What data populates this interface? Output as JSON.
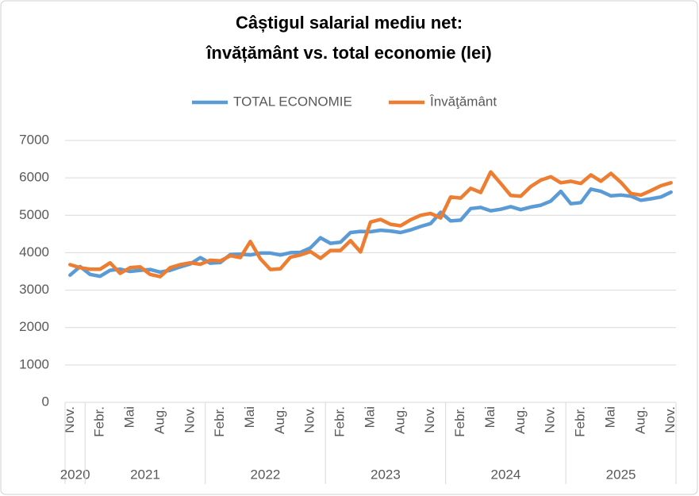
{
  "chart_data": {
    "type": "line",
    "title": [
      "Câștigul salarial mediu net:",
      "învățământ vs. total economie (lei)"
    ],
    "categories": [
      "Nov.",
      null,
      null,
      "Febr.",
      null,
      null,
      "Mai",
      null,
      null,
      "Aug.",
      null,
      null,
      "Nov.",
      null,
      null,
      "Febr.",
      null,
      null,
      "Mai",
      null,
      null,
      "Aug.",
      null,
      null,
      "Nov.",
      null,
      null,
      "Febr.",
      null,
      null,
      "Mai",
      null,
      null,
      "Aug.",
      null,
      null,
      "Nov.",
      null,
      null,
      "Febr.",
      null,
      null,
      "Mai",
      null,
      null,
      "Aug.",
      null,
      null,
      "Nov.",
      null,
      null,
      "Febr.",
      null,
      null,
      "Mai",
      null,
      null,
      "Aug.",
      null,
      null,
      "Nov."
    ],
    "groups": [
      {
        "label": "2020",
        "size": 2
      },
      {
        "label": "2021",
        "size": 12
      },
      {
        "label": "2022",
        "size": 12
      },
      {
        "label": "2023",
        "size": 12
      },
      {
        "label": "2024",
        "size": 12
      },
      {
        "label": "2025",
        "size": 11
      }
    ],
    "series": [
      {
        "name": "TOTAL ECONOMIE",
        "color": "#5b9bd5",
        "values": [
          3400,
          3630,
          3420,
          3370,
          3530,
          3560,
          3500,
          3530,
          3550,
          3480,
          3530,
          3620,
          3700,
          3870,
          3720,
          3740,
          3950,
          3960,
          3940,
          3990,
          3990,
          3940,
          4000,
          4010,
          4130,
          4400,
          4250,
          4280,
          4540,
          4570,
          4560,
          4600,
          4580,
          4540,
          4610,
          4700,
          4780,
          5080,
          4850,
          4870,
          5180,
          5210,
          5120,
          5160,
          5230,
          5150,
          5220,
          5270,
          5380,
          5640,
          5310,
          5340,
          5700,
          5640,
          5520,
          5540,
          5510,
          5400,
          5440,
          5490,
          5620
        ]
      },
      {
        "name": "Învăţământ",
        "color": "#ed7d31",
        "values": [
          3680,
          3600,
          3560,
          3560,
          3730,
          3450,
          3600,
          3620,
          3420,
          3360,
          3600,
          3680,
          3730,
          3690,
          3800,
          3780,
          3920,
          3870,
          4300,
          3840,
          3550,
          3570,
          3880,
          3940,
          4030,
          3850,
          4060,
          4060,
          4320,
          4020,
          4820,
          4890,
          4760,
          4720,
          4880,
          5000,
          5050,
          4930,
          5490,
          5460,
          5720,
          5610,
          6160,
          5850,
          5530,
          5510,
          5770,
          5940,
          6030,
          5870,
          5910,
          5850,
          6080,
          5910,
          6120,
          5880,
          5580,
          5540,
          5660,
          5790,
          5870
        ]
      }
    ],
    "ylim": [
      0,
      7000
    ],
    "yticks": [
      0,
      1000,
      2000,
      3000,
      4000,
      5000,
      6000,
      7000
    ],
    "grid": true,
    "legend": "top"
  }
}
